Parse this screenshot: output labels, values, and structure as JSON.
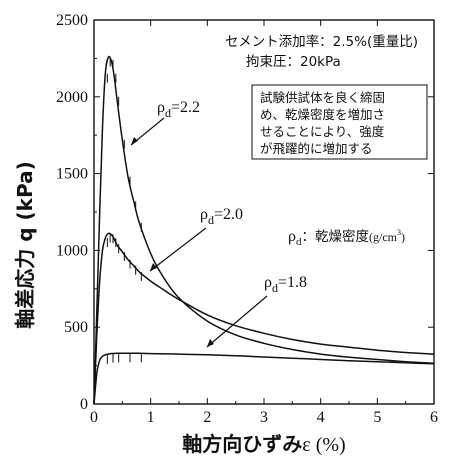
{
  "chart_data": {
    "type": "line",
    "xlabel_main": "軸方向ひずみ",
    "xlabel_unit": "ε (%)",
    "ylabel": "軸差応力 q (kPa)",
    "xlim": [
      0,
      6
    ],
    "ylim": [
      0,
      2500
    ],
    "x_ticks": [
      0,
      1,
      2,
      3,
      4,
      5,
      6
    ],
    "y_ticks": [
      0,
      500,
      1000,
      1500,
      2000,
      2500
    ],
    "grid": false,
    "annotations": {
      "cement": "セメント添加率：2.5%(重量比)",
      "confining": "拘束圧：20kPa",
      "density_legend_main": "：乾燥密度",
      "density_legend_unit": "(g/cm",
      "density_legend_sup": "3",
      "density_legend_close": ")",
      "note": [
        "試験供試体を良く締固",
        "め、乾燥密度を増加さ",
        "せることにより、強度",
        "が飛躍的に増加する"
      ]
    },
    "rho_symbol": "ρ",
    "rho_sub": "d",
    "series": [
      {
        "name": "ρd=2.2",
        "label_value": "=2.2",
        "x": [
          0,
          0.05,
          0.1,
          0.15,
          0.2,
          0.25,
          0.3,
          0.35,
          0.4,
          0.5,
          0.6,
          0.7,
          0.8,
          1.0,
          1.2,
          1.5,
          2.0,
          2.5,
          3.0,
          3.5,
          4.0,
          4.5,
          5.0,
          5.5,
          6.0
        ],
        "y": [
          0,
          600,
          1250,
          1800,
          2150,
          2255,
          2240,
          2150,
          2000,
          1720,
          1480,
          1320,
          1180,
          980,
          840,
          690,
          540,
          450,
          395,
          355,
          325,
          305,
          290,
          275,
          265
        ]
      },
      {
        "name": "ρd=2.0",
        "label_value": "=2.0",
        "x": [
          0,
          0.05,
          0.1,
          0.15,
          0.2,
          0.25,
          0.3,
          0.35,
          0.4,
          0.5,
          0.6,
          0.7,
          0.8,
          1.0,
          1.2,
          1.5,
          2.0,
          2.5,
          3.0,
          3.5,
          4.0,
          4.5,
          5.0,
          5.5,
          6.0
        ],
        "y": [
          0,
          450,
          800,
          1000,
          1080,
          1110,
          1105,
          1080,
          1040,
          990,
          940,
          900,
          860,
          800,
          750,
          680,
          580,
          510,
          460,
          420,
          390,
          370,
          350,
          335,
          325
        ]
      },
      {
        "name": "ρd=1.8",
        "label_value": "=1.8",
        "x": [
          0,
          0.05,
          0.1,
          0.15,
          0.2,
          0.3,
          0.4,
          0.6,
          0.8,
          1.0,
          1.5,
          2.0,
          2.5,
          3.0,
          3.5,
          4.0,
          4.5,
          5.0,
          5.5,
          6.0
        ],
        "y": [
          0,
          200,
          285,
          310,
          320,
          328,
          330,
          330,
          330,
          328,
          325,
          320,
          314,
          306,
          298,
          290,
          282,
          275,
          268,
          262
        ]
      }
    ]
  }
}
